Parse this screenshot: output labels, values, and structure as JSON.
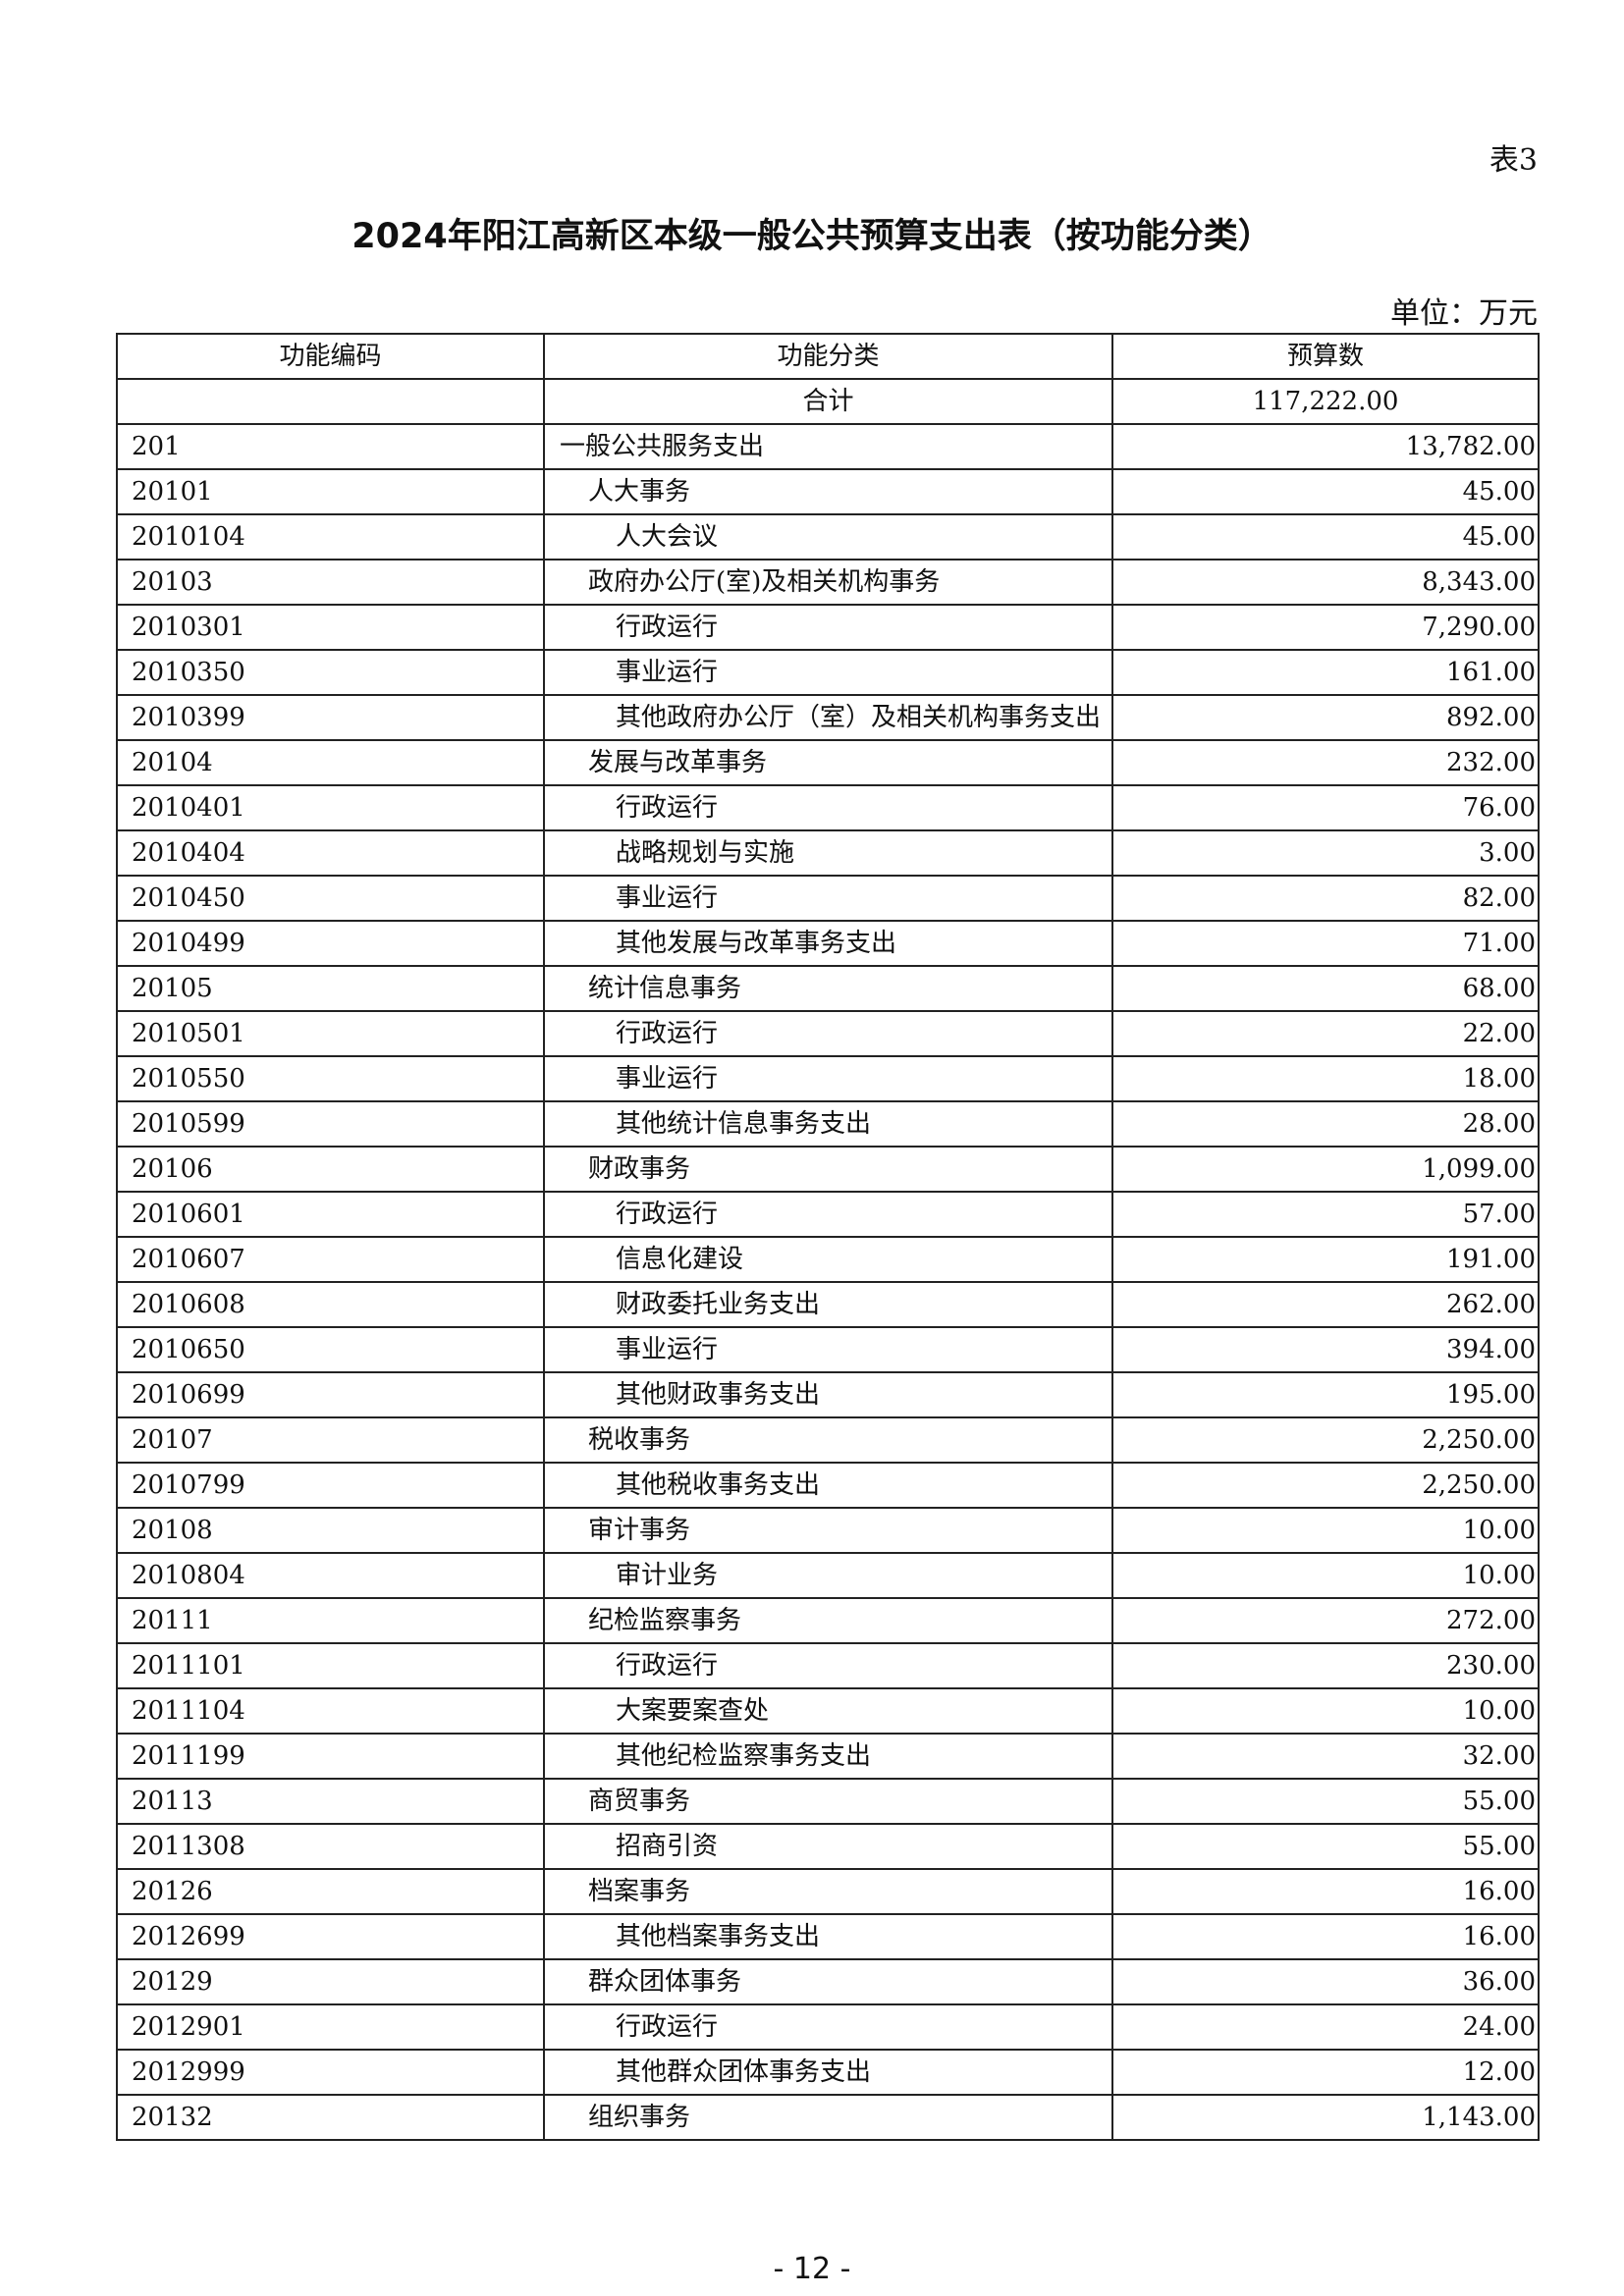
{
  "table_tag": "表3",
  "title": "2024年阳江高新区本级一般公共预算支出表（按功能分类）",
  "unit": "单位：万元",
  "headers": [
    "功能编码",
    "功能分类",
    "预算数"
  ],
  "total": {
    "label": "合计",
    "amount": "117,222.00"
  },
  "rows": [
    {
      "code": "201",
      "name": "一般公共服务支出",
      "amount": "13,782.00",
      "level": 1
    },
    {
      "code": "20101",
      "name": "人大事务",
      "amount": "45.00",
      "level": 2
    },
    {
      "code": "2010104",
      "name": "人大会议",
      "amount": "45.00",
      "level": 3
    },
    {
      "code": "20103",
      "name": "政府办公厅(室)及相关机构事务",
      "amount": "8,343.00",
      "level": 2
    },
    {
      "code": "2010301",
      "name": "行政运行",
      "amount": "7,290.00",
      "level": 3
    },
    {
      "code": "2010350",
      "name": "事业运行",
      "amount": "161.00",
      "level": 3
    },
    {
      "code": "2010399",
      "name": "其他政府办公厅（室）及相关机构事务支出",
      "amount": "892.00",
      "level": 3
    },
    {
      "code": "20104",
      "name": "发展与改革事务",
      "amount": "232.00",
      "level": 2
    },
    {
      "code": "2010401",
      "name": "行政运行",
      "amount": "76.00",
      "level": 3
    },
    {
      "code": "2010404",
      "name": "战略规划与实施",
      "amount": "3.00",
      "level": 3
    },
    {
      "code": "2010450",
      "name": "事业运行",
      "amount": "82.00",
      "level": 3
    },
    {
      "code": "2010499",
      "name": "其他发展与改革事务支出",
      "amount": "71.00",
      "level": 3
    },
    {
      "code": "20105",
      "name": "统计信息事务",
      "amount": "68.00",
      "level": 2
    },
    {
      "code": "2010501",
      "name": "行政运行",
      "amount": "22.00",
      "level": 3
    },
    {
      "code": "2010550",
      "name": "事业运行",
      "amount": "18.00",
      "level": 3
    },
    {
      "code": "2010599",
      "name": "其他统计信息事务支出",
      "amount": "28.00",
      "level": 3
    },
    {
      "code": "20106",
      "name": "财政事务",
      "amount": "1,099.00",
      "level": 2
    },
    {
      "code": "2010601",
      "name": "行政运行",
      "amount": "57.00",
      "level": 3
    },
    {
      "code": "2010607",
      "name": "信息化建设",
      "amount": "191.00",
      "level": 3
    },
    {
      "code": "2010608",
      "name": "财政委托业务支出",
      "amount": "262.00",
      "level": 3
    },
    {
      "code": "2010650",
      "name": "事业运行",
      "amount": "394.00",
      "level": 3
    },
    {
      "code": "2010699",
      "name": "其他财政事务支出",
      "amount": "195.00",
      "level": 3
    },
    {
      "code": "20107",
      "name": "税收事务",
      "amount": "2,250.00",
      "level": 2
    },
    {
      "code": "2010799",
      "name": "其他税收事务支出",
      "amount": "2,250.00",
      "level": 3
    },
    {
      "code": "20108",
      "name": "审计事务",
      "amount": "10.00",
      "level": 2
    },
    {
      "code": "2010804",
      "name": "审计业务",
      "amount": "10.00",
      "level": 3
    },
    {
      "code": "20111",
      "name": "纪检监察事务",
      "amount": "272.00",
      "level": 2
    },
    {
      "code": "2011101",
      "name": "行政运行",
      "amount": "230.00",
      "level": 3
    },
    {
      "code": "2011104",
      "name": "大案要案查处",
      "amount": "10.00",
      "level": 3
    },
    {
      "code": "2011199",
      "name": "其他纪检监察事务支出",
      "amount": "32.00",
      "level": 3
    },
    {
      "code": "20113",
      "name": "商贸事务",
      "amount": "55.00",
      "level": 2
    },
    {
      "code": "2011308",
      "name": "招商引资",
      "amount": "55.00",
      "level": 3
    },
    {
      "code": "20126",
      "name": "档案事务",
      "amount": "16.00",
      "level": 2
    },
    {
      "code": "2012699",
      "name": "其他档案事务支出",
      "amount": "16.00",
      "level": 3
    },
    {
      "code": "20129",
      "name": "群众团体事务",
      "amount": "36.00",
      "level": 2
    },
    {
      "code": "2012901",
      "name": "行政运行",
      "amount": "24.00",
      "level": 3
    },
    {
      "code": "2012999",
      "name": "其他群众团体事务支出",
      "amount": "12.00",
      "level": 3
    },
    {
      "code": "20132",
      "name": "组织事务",
      "amount": "1,143.00",
      "level": 2
    }
  ],
  "page_number": "- 12 -"
}
